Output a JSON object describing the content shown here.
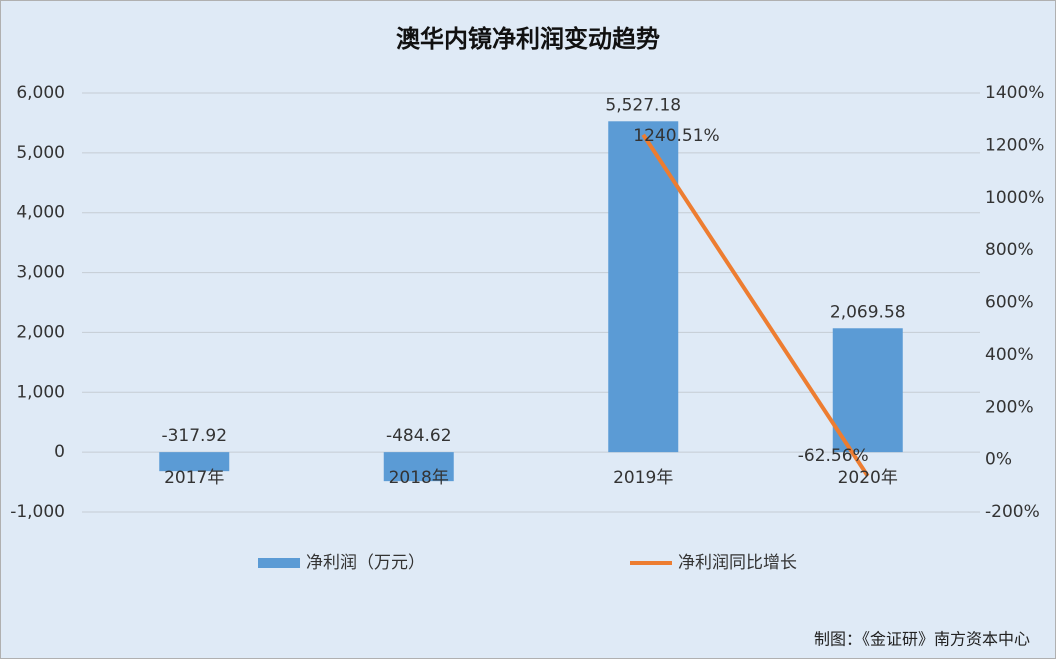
{
  "chart_data": {
    "type": "bar",
    "title": "澳华内镜净利润变动趋势",
    "categories": [
      "2017年",
      "2018年",
      "2019年",
      "2020年"
    ],
    "series": [
      {
        "name": "净利润（万元）",
        "color": "#5b9bd5",
        "type": "bar",
        "values": [
          -317.92,
          -484.62,
          5527.18,
          2069.58
        ],
        "value_labels": [
          "-317.92",
          "-484.62",
          "5,527.18",
          "2,069.58"
        ]
      },
      {
        "name": "净利润同比增长",
        "color": "#ed7d31",
        "type": "line",
        "axis": "y2",
        "values": [
          null,
          null,
          1240.51,
          -62.56
        ],
        "value_labels": [
          null,
          null,
          "1240.51%",
          "-62.56%"
        ]
      }
    ],
    "ylim": [
      -1000,
      6000
    ],
    "yticks": [
      {
        "value": -1000,
        "label": "-1,000"
      },
      0,
      {
        "value": 1000,
        "label": "1,000"
      },
      {
        "value": 2000,
        "label": "2,000"
      },
      {
        "value": 3000,
        "label": "3,000"
      },
      {
        "value": 4000,
        "label": "4,000"
      },
      {
        "value": 5000,
        "label": "5,000"
      },
      {
        "value": 6000,
        "label": "6,000"
      }
    ],
    "y2lim": [
      -200,
      1400
    ],
    "y2ticks": [
      {
        "value": -200,
        "label": "-200%"
      },
      {
        "value": 0,
        "label": "0%"
      },
      {
        "value": 200,
        "label": "200%"
      },
      {
        "value": 400,
        "label": "400%"
      },
      {
        "value": 600,
        "label": "600%"
      },
      {
        "value": 800,
        "label": "800%"
      },
      {
        "value": 1000,
        "label": "1000%"
      },
      {
        "value": 1200,
        "label": "1200%"
      },
      {
        "value": 1400,
        "label": "1400%"
      }
    ],
    "grid": true,
    "legend": "bottom",
    "source": "制图：《金证研》南方资本中心"
  }
}
